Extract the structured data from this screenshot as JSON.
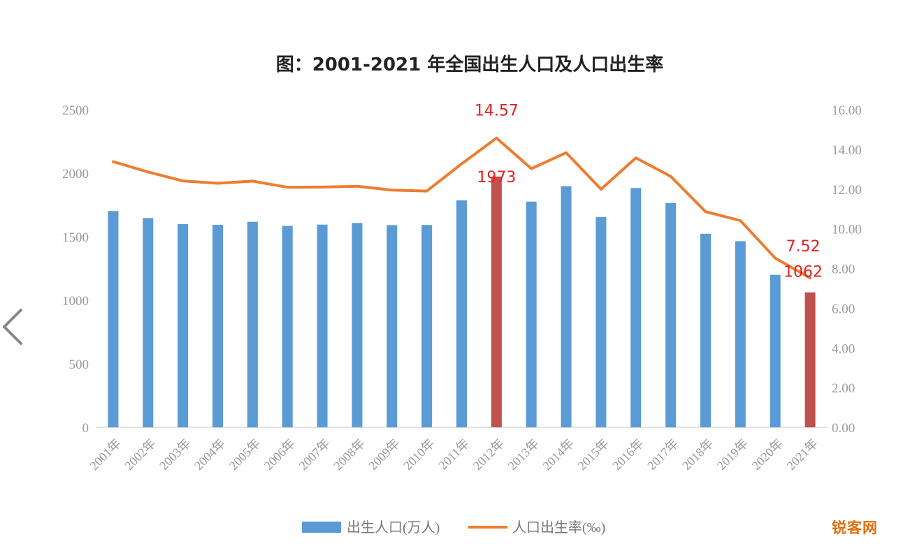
{
  "nav": {
    "prev_icon": "chevron-left-icon"
  },
  "watermark": {
    "text": "锐客网"
  },
  "chart_data": {
    "type": "bar+line",
    "title": "图：2001-2021 年全国出生人口及人口出生率",
    "categories": [
      "2001年",
      "2002年",
      "2003年",
      "2004年",
      "2005年",
      "2006年",
      "2007年",
      "2008年",
      "2009年",
      "2010年",
      "2011年",
      "2012年",
      "2013年",
      "2014年",
      "2015年",
      "2016年",
      "2017年",
      "2018年",
      "2019年",
      "2020年",
      "2021年"
    ],
    "series": [
      {
        "name": "出生人口(万人)",
        "type": "bar",
        "axis": "left",
        "color": "#5b9bd5",
        "highlight_color": "#c0504d",
        "highlight_index": [
          11,
          20
        ],
        "values": [
          1702,
          1647,
          1599,
          1593,
          1617,
          1585,
          1595,
          1608,
          1591,
          1592,
          1786,
          1973,
          1776,
          1897,
          1655,
          1883,
          1765,
          1523,
          1465,
          1200,
          1062
        ]
      },
      {
        "name": "人口出生率(‰)",
        "type": "line",
        "axis": "right",
        "color": "#ed7d31",
        "values": [
          13.38,
          12.86,
          12.41,
          12.29,
          12.4,
          12.09,
          12.1,
          12.14,
          11.95,
          11.9,
          13.27,
          14.57,
          13.03,
          13.83,
          11.99,
          13.57,
          12.64,
          10.86,
          10.41,
          8.52,
          7.52
        ]
      }
    ],
    "left_axis": {
      "min": 0,
      "max": 2500,
      "ticks": [
        "0",
        "500",
        "1000",
        "1500",
        "2000",
        "2500"
      ]
    },
    "right_axis": {
      "min": 0,
      "max": 16,
      "ticks": [
        "0.00",
        "2.00",
        "4.00",
        "6.00",
        "8.00",
        "10.00",
        "12.00",
        "14.00",
        "16.00"
      ]
    },
    "annotations": [
      {
        "text": "14.57",
        "index": 11,
        "series": "line"
      },
      {
        "text": "1973",
        "index": 11,
        "series": "bar"
      },
      {
        "text": "7.52",
        "index": 20,
        "series": "line"
      },
      {
        "text": "1062",
        "index": 20,
        "series": "bar"
      }
    ],
    "grid": false,
    "legend": "bottom"
  }
}
